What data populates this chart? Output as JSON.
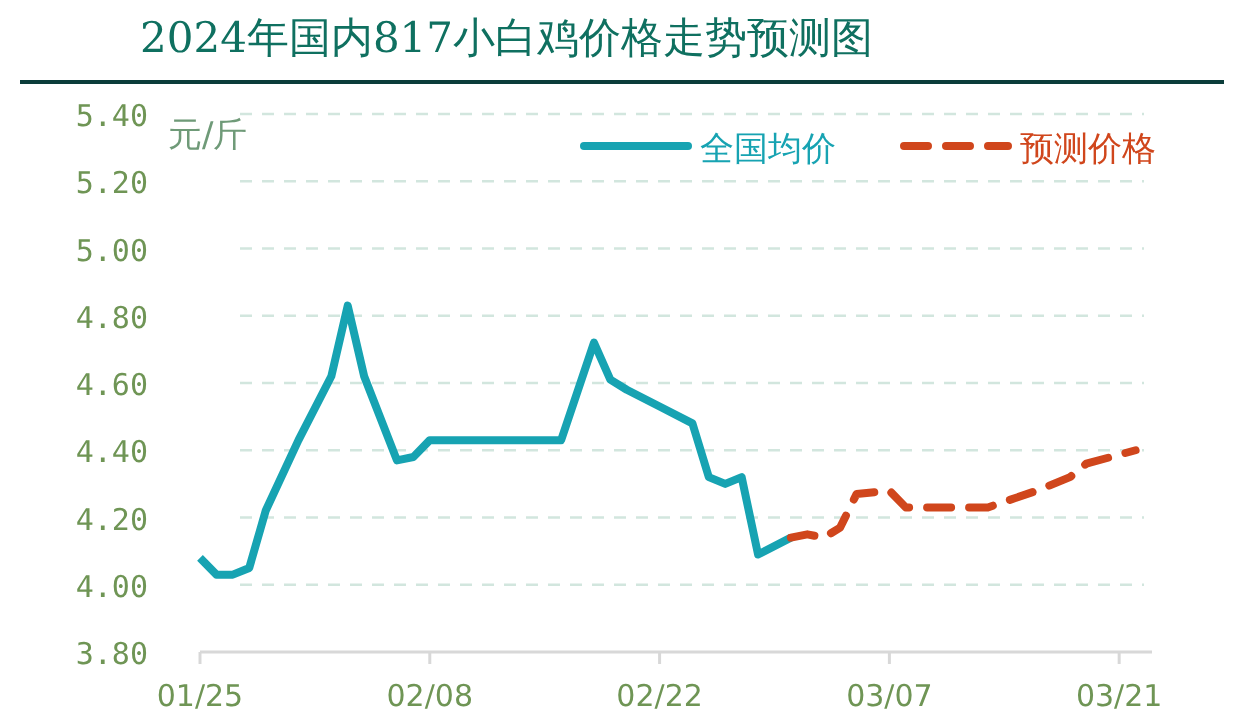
{
  "chart_data": {
    "type": "line",
    "title": "2024年国内817小白鸡价格走势预测图",
    "ylabel": "元/斤",
    "xlim": [
      "2024-01-25",
      "2024-03-23"
    ],
    "xticks": [
      {
        "value": "2024-01-25",
        "label": "01/25"
      },
      {
        "value": "2024-02-08",
        "label": "02/08"
      },
      {
        "value": "2024-02-22",
        "label": "02/22"
      },
      {
        "value": "2024-03-07",
        "label": "03/07"
      },
      {
        "value": "2024-03-21",
        "label": "03/21"
      }
    ],
    "ylim": [
      3.8,
      5.4
    ],
    "yticks": [
      {
        "value": 3.8,
        "label": "3.80"
      },
      {
        "value": 4.0,
        "label": "4.00"
      },
      {
        "value": 4.2,
        "label": "4.20"
      },
      {
        "value": 4.4,
        "label": "4.40"
      },
      {
        "value": 4.6,
        "label": "4.60"
      },
      {
        "value": 4.8,
        "label": "4.80"
      },
      {
        "value": 5.0,
        "label": "5.00"
      },
      {
        "value": 5.2,
        "label": "5.20"
      },
      {
        "value": 5.4,
        "label": "5.40"
      }
    ],
    "grid": "y",
    "legend": "top right",
    "series": [
      {
        "name": "全国均价",
        "color": "#17a3b2",
        "line_style": "solid",
        "x": [
          "2024-01-25",
          "2024-01-26",
          "2024-01-27",
          "2024-01-28",
          "2024-01-29",
          "2024-01-31",
          "2024-02-02",
          "2024-02-03",
          "2024-02-04",
          "2024-02-06",
          "2024-02-07",
          "2024-02-08",
          "2024-02-16",
          "2024-02-18",
          "2024-02-19",
          "2024-02-20",
          "2024-02-22",
          "2024-02-24",
          "2024-02-25",
          "2024-02-26",
          "2024-02-27",
          "2024-02-28",
          "2024-03-01"
        ],
        "values": [
          4.08,
          4.03,
          4.03,
          4.05,
          4.22,
          4.43,
          4.62,
          4.83,
          4.62,
          4.37,
          4.38,
          4.43,
          4.43,
          4.72,
          4.61,
          4.58,
          4.53,
          4.48,
          4.32,
          4.3,
          4.32,
          4.09,
          4.14
        ]
      },
      {
        "name": "预测价格",
        "color": "#d0461c",
        "line_style": "dashed",
        "x": [
          "2024-03-01",
          "2024-03-02",
          "2024-03-03",
          "2024-03-04",
          "2024-03-05",
          "2024-03-07",
          "2024-03-08",
          "2024-03-13",
          "2024-03-16",
          "2024-03-18",
          "2024-03-19",
          "2024-03-22"
        ],
        "values": [
          4.14,
          4.15,
          4.14,
          4.17,
          4.27,
          4.28,
          4.23,
          4.23,
          4.28,
          4.32,
          4.36,
          4.4
        ]
      }
    ]
  }
}
